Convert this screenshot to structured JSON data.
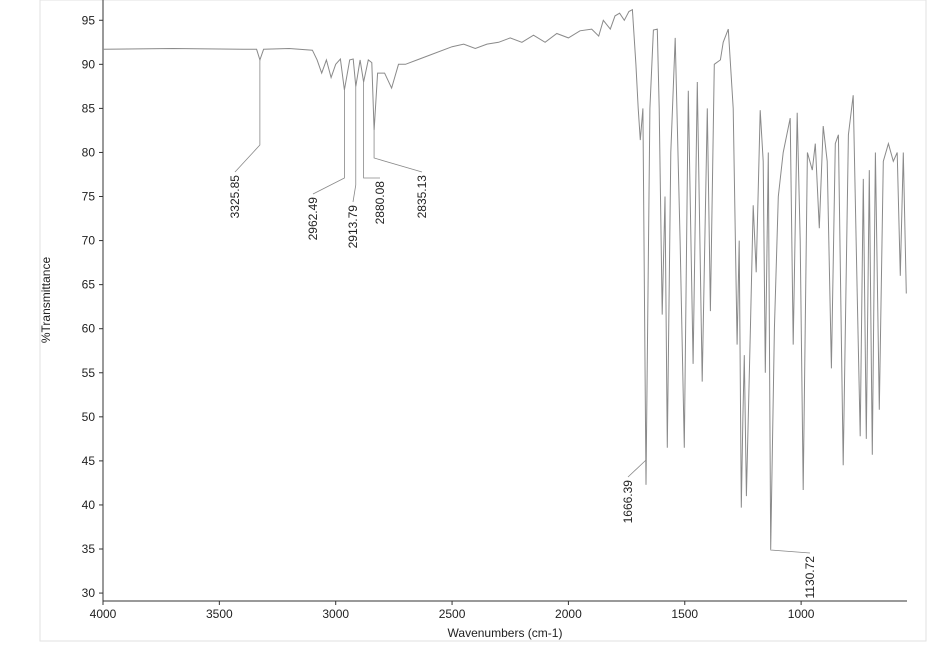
{
  "chart_data": {
    "type": "line",
    "x_label": "Wavenumbers (cm-1)",
    "y_label": "%Transmittance",
    "xlim": [
      4000,
      545
    ],
    "ylim": [
      29.1,
      97.3
    ],
    "xticks": [
      4000,
      3500,
      3000,
      2500,
      2000,
      1500,
      1000
    ],
    "yticks": [
      30,
      35,
      40,
      45,
      50,
      55,
      60,
      65,
      70,
      75,
      80,
      85,
      90,
      95
    ],
    "series": [
      {
        "color": "#8a8a8a",
        "x": [
          4000,
          3700,
          3400,
          3340,
          3325.85,
          3310,
          3200,
          3100,
          3080,
          3060,
          3040,
          3020,
          3000,
          2980,
          2962.49,
          2940,
          2925,
          2913.79,
          2895,
          2880.08,
          2860,
          2845,
          2835.13,
          2820,
          2790,
          2760,
          2730,
          2700,
          2650,
          2600,
          2500,
          2450,
          2400,
          2350,
          2300,
          2250,
          2200,
          2150,
          2100,
          2050,
          2000,
          1950,
          1900,
          1870,
          1850,
          1820,
          1800,
          1780,
          1760,
          1740,
          1725,
          1710,
          1700,
          1691,
          1680,
          1666.39,
          1650,
          1635,
          1618,
          1610,
          1597,
          1585,
          1575,
          1560,
          1541,
          1520,
          1502,
          1485,
          1464,
          1446,
          1425,
          1403,
          1390,
          1373,
          1347,
          1335,
          1313,
          1292,
          1275,
          1266,
          1257,
          1250,
          1244,
          1235,
          1218,
          1206,
          1193,
          1176,
          1163,
          1154,
          1141,
          1130.72,
          1115,
          1098,
          1077,
          1047,
          1034,
          1017,
          1004,
          991,
          973,
          952,
          939,
          922,
          905,
          888,
          870,
          853,
          840,
          819,
          797,
          776,
          759,
          746,
          733,
          720,
          707,
          694,
          681,
          664,
          647,
          625,
          604,
          587,
          574,
          561,
          548
        ],
        "values": [
          91.7,
          91.8,
          91.7,
          91.7,
          90.5,
          91.7,
          91.8,
          91.6,
          90.5,
          89,
          90.5,
          88.5,
          90,
          90.6,
          87.1,
          90.5,
          90.6,
          87.5,
          90.5,
          88,
          90.5,
          90.2,
          82.5,
          89,
          89,
          87.3,
          90,
          90,
          90.5,
          91,
          92,
          92.3,
          91.8,
          92.3,
          92.5,
          93,
          92.5,
          93.3,
          92.5,
          93.5,
          93,
          93.8,
          94,
          93.2,
          95,
          94,
          95.5,
          95.8,
          95,
          96,
          96.2,
          90,
          85,
          81.4,
          85,
          42.3,
          85,
          93.9,
          94,
          85,
          61.6,
          75,
          46.5,
          80,
          93,
          70,
          46.5,
          87,
          56,
          88,
          54,
          85,
          62,
          90,
          90.5,
          92.5,
          94,
          85,
          58.2,
          70,
          39.7,
          50,
          57,
          41,
          60,
          74,
          66.4,
          84.8,
          79,
          55,
          80,
          35,
          60,
          75,
          80,
          83.9,
          58.2,
          84.5,
          70,
          41.7,
          80,
          78,
          81,
          71.4,
          83,
          79,
          55.5,
          81,
          82,
          44.5,
          82,
          86.5,
          64,
          47.8,
          77,
          47.5,
          78,
          45.7,
          80,
          50.8,
          79,
          81,
          79,
          80,
          66,
          80,
          64
        ]
      }
    ],
    "annotations": [
      {
        "x": 3325.85,
        "y": 90.5
      },
      {
        "x": 2962.49,
        "y": 87.1
      },
      {
        "x": 2913.79,
        "y": 87.5
      },
      {
        "x": 2880.08,
        "y": 88
      },
      {
        "x": 2835.13,
        "y": 82.5
      },
      {
        "x": 1666.39,
        "y": 42.3
      },
      {
        "x": 1130.72,
        "y": 35
      }
    ]
  }
}
